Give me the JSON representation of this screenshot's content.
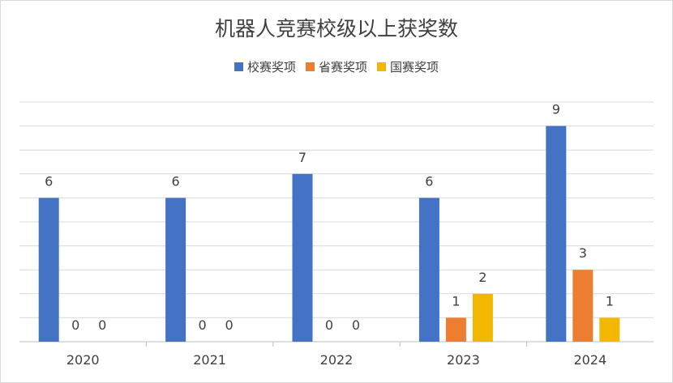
{
  "chart_data": {
    "type": "bar",
    "title": "机器人竞赛校级以上获奖数",
    "categories": [
      "2020",
      "2021",
      "2022",
      "2023",
      "2024"
    ],
    "series": [
      {
        "name": "校赛奖项",
        "color": "#4472c4",
        "values": [
          6,
          6,
          7,
          6,
          9
        ]
      },
      {
        "name": "省赛奖项",
        "color": "#ed7d31",
        "values": [
          0,
          0,
          0,
          1,
          3
        ]
      },
      {
        "name": "国赛奖项",
        "color": "#f2b800",
        "values": [
          0,
          0,
          0,
          2,
          1
        ]
      }
    ],
    "ylim": [
      0,
      10
    ],
    "grid": true,
    "legend": "top",
    "data_labels": true
  }
}
